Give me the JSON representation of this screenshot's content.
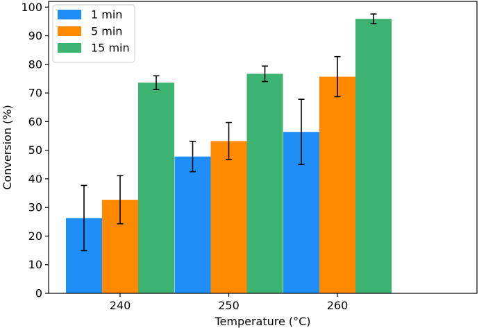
{
  "chart_data": {
    "type": "bar",
    "title": "",
    "xlabel": "Temperature (°C)",
    "ylabel": "Conversion (%)",
    "ylim": [
      0,
      102
    ],
    "yticks": [
      0,
      10,
      20,
      30,
      40,
      50,
      60,
      70,
      80,
      90,
      100
    ],
    "categories": [
      "240",
      "250",
      "260"
    ],
    "series": [
      {
        "name": "1 min",
        "color": "#1f8ff7",
        "values": [
          26.3,
          47.8,
          56.4
        ],
        "errors": [
          11.4,
          5.3,
          11.4
        ]
      },
      {
        "name": "5 min",
        "color": "#ff8a00",
        "values": [
          32.7,
          53.2,
          75.7
        ],
        "errors": [
          8.4,
          6.5,
          7.0
        ]
      },
      {
        "name": "15 min",
        "color": "#3cb371",
        "values": [
          73.6,
          76.7,
          95.9
        ],
        "errors": [
          2.4,
          2.7,
          1.7
        ]
      }
    ],
    "legend": "top-left",
    "grid": false
  }
}
